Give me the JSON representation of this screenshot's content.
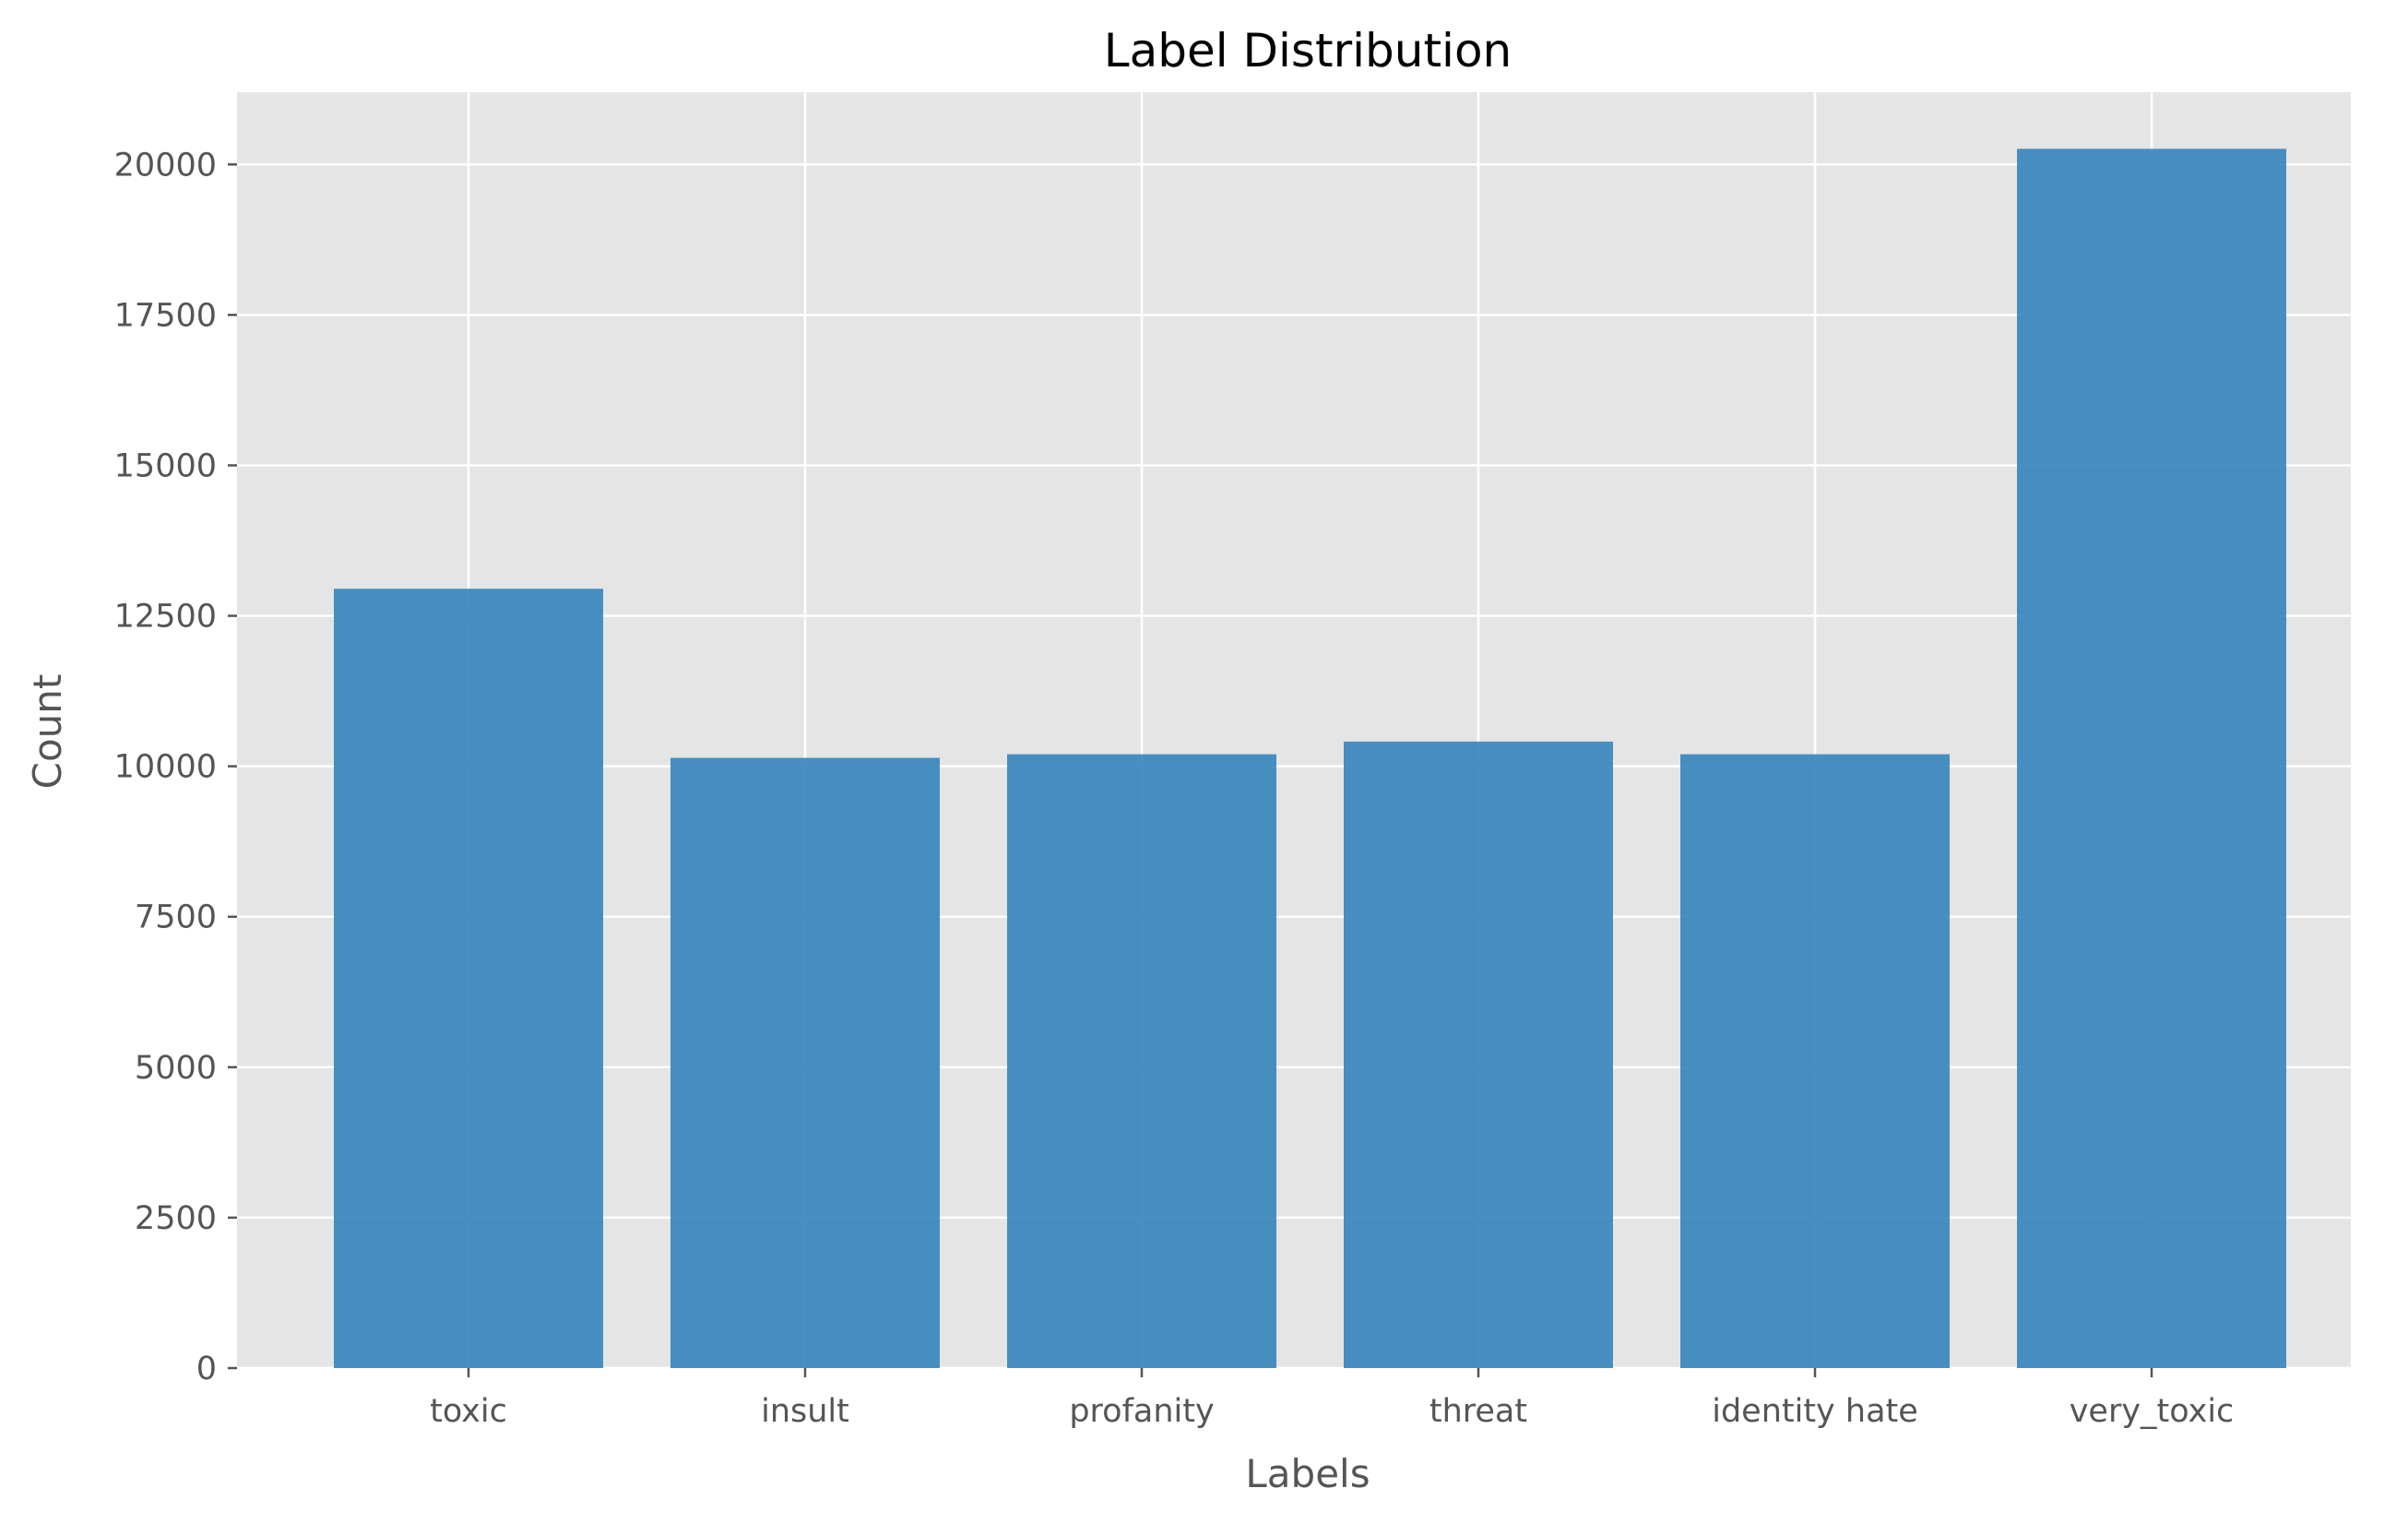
{
  "chart_data": {
    "type": "bar",
    "title": "Label Distribution",
    "xlabel": "Labels",
    "ylabel": "Count",
    "categories": [
      "toxic",
      "insult",
      "profanity",
      "threat",
      "identity hate",
      "very_toxic"
    ],
    "values": [
      12950,
      10140,
      10200,
      10410,
      10200,
      20260
    ],
    "ylim": [
      0,
      21200
    ],
    "yticks": [
      0,
      2500,
      5000,
      7500,
      10000,
      12500,
      15000,
      17500,
      20000
    ],
    "grid": true,
    "colors": {
      "bar": "#3a87bd",
      "plot_background": "#e5e5e5",
      "grid": "#ffffff",
      "tick": "#555555"
    }
  }
}
